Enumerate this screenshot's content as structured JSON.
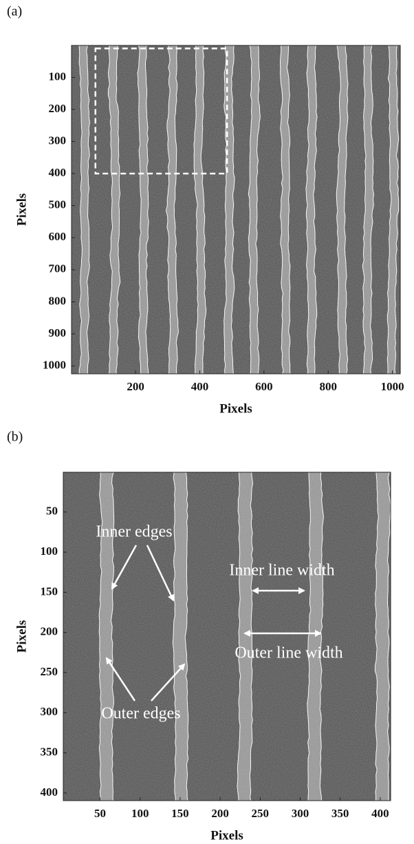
{
  "chart_data": [
    {
      "type": "image",
      "panel_label": "(a)",
      "xlabel": "Pixels",
      "ylabel": "Pixels",
      "xlim": [
        0.5,
        1024.5
      ],
      "ylim": [
        0.5,
        1024.5
      ],
      "y_inverted": true,
      "xticks": [
        200,
        400,
        600,
        800,
        1000
      ],
      "yticks": [
        100,
        200,
        300,
        400,
        500,
        600,
        700,
        800,
        900,
        1000
      ],
      "zoom_box": {
        "x": [
          75,
          485
        ],
        "y": [
          10,
          400
        ]
      }
    },
    {
      "type": "image",
      "panel_label": "(b)",
      "xlabel": "Pixels",
      "ylabel": "Pixels",
      "xlim": [
        4,
        413
      ],
      "ylim": [
        0.5,
        409.5
      ],
      "y_inverted": true,
      "xticks": [
        50,
        100,
        150,
        200,
        250,
        300,
        350,
        400
      ],
      "yticks": [
        50,
        100,
        150,
        200,
        250,
        300,
        350,
        400
      ],
      "annotations": [
        "Inner edges",
        "Outer edges",
        "Inner line width",
        "Outer line width"
      ]
    }
  ]
}
